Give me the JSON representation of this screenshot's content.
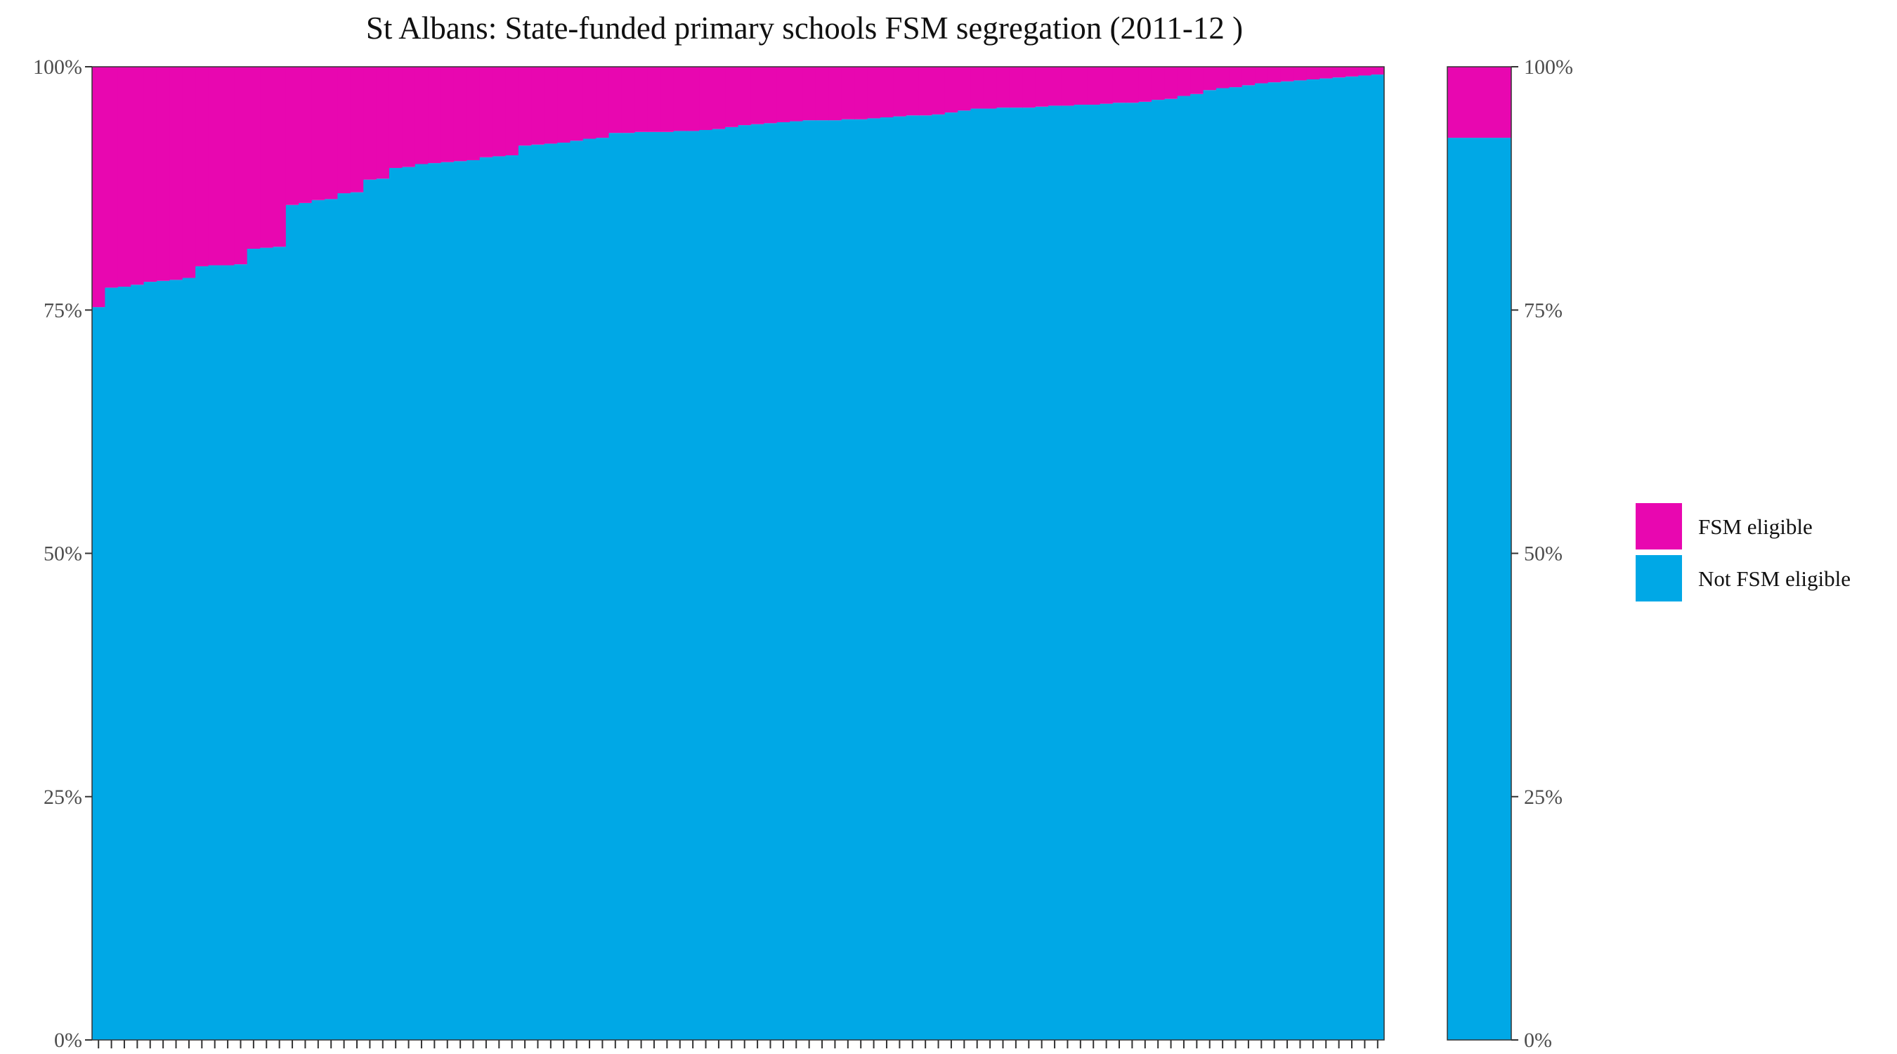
{
  "chart_data": {
    "type": "bar",
    "stacked": true,
    "orientation": "vertical",
    "title": "St Albans: State-funded primary schools FSM segregation (2011-12 )",
    "xlabel": "",
    "ylabel": "",
    "ylim": [
      0,
      100
    ],
    "y_unit": "%",
    "y_ticks": [
      "0%",
      "25%",
      "50%",
      "75%",
      "100%"
    ],
    "y_tick_values": [
      0,
      25,
      50,
      75,
      100
    ],
    "grid": false,
    "secondary_y_axis": true,
    "legend_position": "right",
    "colors": {
      "fsm_eligible": "#e807b0",
      "not_fsm_eligible": "#00a8e6"
    },
    "series": [
      {
        "key": "fsm_eligible",
        "name": "FSM eligible"
      },
      {
        "key": "not_fsm_eligible",
        "name": "Not FSM eligible"
      }
    ],
    "schools": {
      "description_of_values": "Not FSM eligible percentage per school, sorted ascending; FSM eligible is the remainder to 100%",
      "not_fsm_eligible_pct": [
        75.3,
        77.3,
        77.4,
        77.6,
        77.9,
        78.0,
        78.1,
        78.3,
        79.5,
        79.6,
        79.6,
        79.7,
        81.3,
        81.4,
        81.5,
        85.8,
        86.0,
        86.3,
        86.4,
        87.0,
        87.1,
        88.4,
        88.5,
        89.6,
        89.7,
        90.0,
        90.1,
        90.2,
        90.3,
        90.4,
        90.7,
        90.8,
        90.9,
        91.9,
        92.0,
        92.1,
        92.2,
        92.4,
        92.6,
        92.7,
        93.2,
        93.2,
        93.3,
        93.3,
        93.3,
        93.4,
        93.4,
        93.5,
        93.6,
        93.8,
        94.0,
        94.1,
        94.2,
        94.3,
        94.4,
        94.5,
        94.5,
        94.5,
        94.6,
        94.6,
        94.7,
        94.8,
        94.9,
        95.0,
        95.0,
        95.1,
        95.3,
        95.5,
        95.7,
        95.7,
        95.8,
        95.8,
        95.8,
        95.9,
        96.0,
        96.0,
        96.1,
        96.1,
        96.2,
        96.3,
        96.3,
        96.4,
        96.6,
        96.7,
        97.0,
        97.2,
        97.6,
        97.8,
        97.9,
        98.1,
        98.3,
        98.4,
        98.5,
        98.6,
        98.7,
        98.8,
        98.9,
        99.0,
        99.1,
        99.2
      ]
    },
    "overall": {
      "not_fsm_eligible_pct": 92.7,
      "fsm_eligible_pct": 7.3
    }
  }
}
